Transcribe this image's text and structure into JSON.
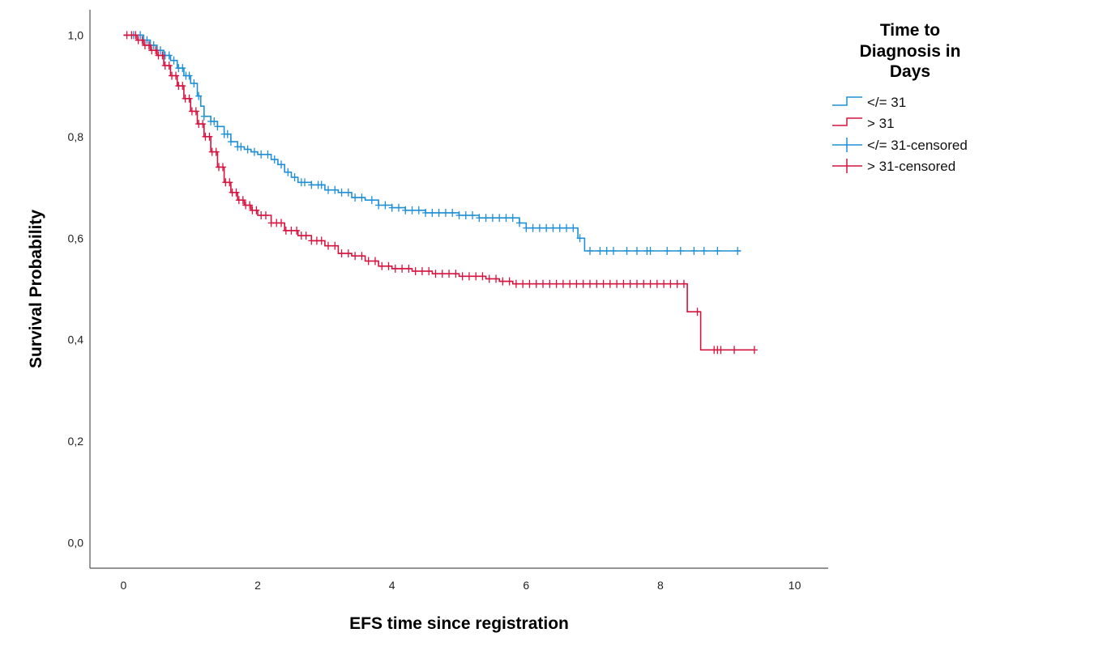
{
  "chart_data": {
    "type": "line",
    "xlabel": "EFS time since registration",
    "ylabel": "Survival Probability",
    "xlim": [
      -0.5,
      10.5
    ],
    "ylim": [
      -0.05,
      1.05
    ],
    "xticks": [
      0,
      2,
      4,
      6,
      8,
      10
    ],
    "xtick_labels": [
      "0",
      "2",
      "4",
      "6",
      "8",
      "10"
    ],
    "yticks": [
      0.0,
      0.2,
      0.4,
      0.6,
      0.8,
      1.0
    ],
    "ytick_labels": [
      "0,0",
      "0,2",
      "0,4",
      "0,6",
      "0,8",
      "1,0"
    ],
    "grid": false,
    "legend": {
      "title_lines": [
        "Time to",
        "Diagnosis in",
        "Days"
      ],
      "placement": "top-right",
      "entries": [
        "</= 31",
        "> 31",
        "</= 31-censored",
        "> 31-censored"
      ]
    },
    "series": [
      {
        "name": "</= 31",
        "color": "#1f8fd6",
        "step": [
          [
            0,
            1.0
          ],
          [
            0.2,
            1.0
          ],
          [
            0.3,
            0.99
          ],
          [
            0.4,
            0.98
          ],
          [
            0.5,
            0.97
          ],
          [
            0.6,
            0.96
          ],
          [
            0.7,
            0.95
          ],
          [
            0.8,
            0.935
          ],
          [
            0.9,
            0.92
          ],
          [
            1.0,
            0.905
          ],
          [
            1.1,
            0.88
          ],
          [
            1.15,
            0.86
          ],
          [
            1.2,
            0.84
          ],
          [
            1.3,
            0.83
          ],
          [
            1.4,
            0.82
          ],
          [
            1.5,
            0.805
          ],
          [
            1.6,
            0.79
          ],
          [
            1.7,
            0.78
          ],
          [
            1.8,
            0.775
          ],
          [
            1.9,
            0.77
          ],
          [
            2.0,
            0.765
          ],
          [
            2.2,
            0.755
          ],
          [
            2.3,
            0.745
          ],
          [
            2.4,
            0.73
          ],
          [
            2.5,
            0.72
          ],
          [
            2.6,
            0.71
          ],
          [
            2.8,
            0.705
          ],
          [
            3.0,
            0.695
          ],
          [
            3.2,
            0.69
          ],
          [
            3.4,
            0.68
          ],
          [
            3.6,
            0.675
          ],
          [
            3.8,
            0.665
          ],
          [
            4.0,
            0.66
          ],
          [
            4.2,
            0.655
          ],
          [
            4.5,
            0.65
          ],
          [
            5.0,
            0.645
          ],
          [
            5.3,
            0.64
          ],
          [
            5.9,
            0.63
          ],
          [
            6.0,
            0.62
          ],
          [
            6.75,
            0.62
          ],
          [
            6.77,
            0.6
          ],
          [
            6.85,
            0.6
          ],
          [
            6.87,
            0.575
          ],
          [
            9.2,
            0.575
          ]
        ],
        "censored": [
          0.15,
          0.25,
          0.35,
          0.45,
          0.55,
          0.62,
          0.68,
          0.75,
          0.82,
          0.88,
          0.93,
          0.98,
          1.05,
          1.12,
          1.2,
          1.3,
          1.35,
          1.4,
          1.5,
          1.55,
          1.6,
          1.7,
          1.75,
          1.85,
          1.95,
          2.05,
          2.15,
          2.25,
          2.35,
          2.45,
          2.55,
          2.65,
          2.7,
          2.8,
          2.9,
          2.95,
          3.05,
          3.15,
          3.25,
          3.35,
          3.45,
          3.55,
          3.7,
          3.8,
          3.9,
          4.0,
          4.1,
          4.2,
          4.3,
          4.4,
          4.5,
          4.6,
          4.7,
          4.8,
          4.9,
          5.0,
          5.1,
          5.2,
          5.3,
          5.4,
          5.5,
          5.6,
          5.7,
          5.8,
          5.9,
          6.0,
          6.1,
          6.2,
          6.3,
          6.4,
          6.5,
          6.6,
          6.7,
          6.8,
          6.95,
          7.1,
          7.2,
          7.3,
          7.5,
          7.65,
          7.8,
          7.85,
          8.1,
          8.3,
          8.5,
          8.65,
          8.85,
          9.15
        ]
      },
      {
        "name": "> 31",
        "color": "#d5133f",
        "step": [
          [
            0,
            1.0
          ],
          [
            0.1,
            1.0
          ],
          [
            0.2,
            0.99
          ],
          [
            0.3,
            0.98
          ],
          [
            0.4,
            0.97
          ],
          [
            0.5,
            0.96
          ],
          [
            0.6,
            0.94
          ],
          [
            0.7,
            0.92
          ],
          [
            0.8,
            0.9
          ],
          [
            0.9,
            0.875
          ],
          [
            1.0,
            0.85
          ],
          [
            1.1,
            0.825
          ],
          [
            1.2,
            0.8
          ],
          [
            1.3,
            0.77
          ],
          [
            1.4,
            0.74
          ],
          [
            1.5,
            0.71
          ],
          [
            1.6,
            0.69
          ],
          [
            1.7,
            0.675
          ],
          [
            1.8,
            0.665
          ],
          [
            1.9,
            0.655
          ],
          [
            2.0,
            0.645
          ],
          [
            2.2,
            0.63
          ],
          [
            2.4,
            0.615
          ],
          [
            2.6,
            0.605
          ],
          [
            2.8,
            0.595
          ],
          [
            3.0,
            0.585
          ],
          [
            3.2,
            0.57
          ],
          [
            3.4,
            0.565
          ],
          [
            3.6,
            0.555
          ],
          [
            3.8,
            0.545
          ],
          [
            4.0,
            0.54
          ],
          [
            4.3,
            0.535
          ],
          [
            4.6,
            0.53
          ],
          [
            5.0,
            0.525
          ],
          [
            5.4,
            0.52
          ],
          [
            5.6,
            0.515
          ],
          [
            5.8,
            0.51
          ],
          [
            8.4,
            0.51
          ],
          [
            8.4,
            0.455
          ],
          [
            8.6,
            0.455
          ],
          [
            8.6,
            0.38
          ],
          [
            9.4,
            0.38
          ]
        ],
        "censored": [
          0.05,
          0.12,
          0.18,
          0.22,
          0.28,
          0.32,
          0.38,
          0.42,
          0.48,
          0.52,
          0.58,
          0.62,
          0.68,
          0.72,
          0.78,
          0.82,
          0.88,
          0.92,
          0.98,
          1.02,
          1.08,
          1.12,
          1.18,
          1.22,
          1.28,
          1.32,
          1.38,
          1.42,
          1.48,
          1.52,
          1.58,
          1.62,
          1.68,
          1.72,
          1.78,
          1.82,
          1.88,
          1.92,
          1.98,
          2.05,
          2.12,
          2.2,
          2.28,
          2.35,
          2.42,
          2.5,
          2.58,
          2.65,
          2.72,
          2.8,
          2.88,
          2.95,
          3.05,
          3.15,
          3.25,
          3.35,
          3.45,
          3.55,
          3.65,
          3.75,
          3.85,
          3.95,
          4.05,
          4.15,
          4.25,
          4.35,
          4.45,
          4.55,
          4.65,
          4.75,
          4.85,
          4.95,
          5.05,
          5.15,
          5.25,
          5.35,
          5.45,
          5.55,
          5.65,
          5.75,
          5.85,
          5.95,
          6.05,
          6.15,
          6.25,
          6.35,
          6.45,
          6.55,
          6.65,
          6.75,
          6.85,
          6.95,
          7.05,
          7.15,
          7.25,
          7.35,
          7.45,
          7.55,
          7.65,
          7.75,
          7.85,
          7.95,
          8.05,
          8.15,
          8.25,
          8.35,
          8.55,
          8.8,
          8.85,
          8.9,
          9.1,
          9.4
        ]
      }
    ]
  }
}
